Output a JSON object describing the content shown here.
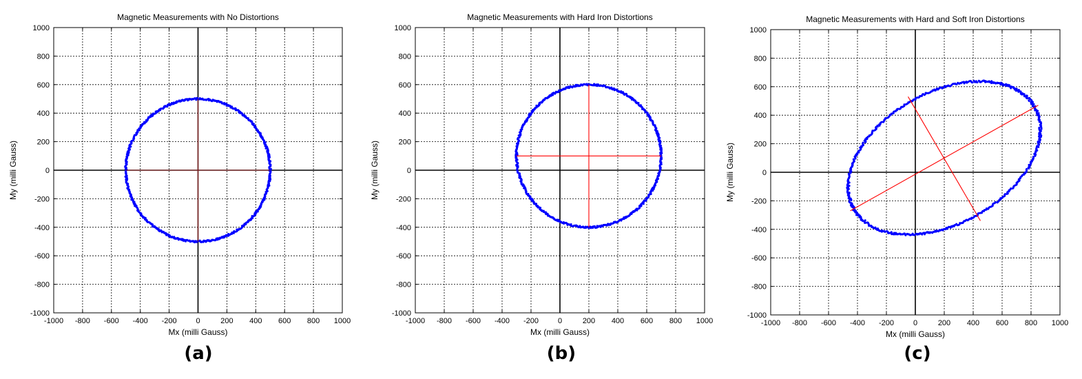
{
  "chart_data": [
    {
      "type": "scatter",
      "panel_label": "(a)",
      "title": "Magnetic Measurements with No Distortions",
      "xlabel": "Mx (milli Gauss)",
      "ylabel": "My (milli Gauss)",
      "xlim": [
        -1000,
        1000
      ],
      "ylim": [
        -1000,
        1000
      ],
      "xticks": [
        "-1000",
        "-800",
        "-600",
        "-400",
        "-200",
        "0",
        "200",
        "400",
        "600",
        "800",
        "1000"
      ],
      "yticks": [
        "-1000",
        "-800",
        "-600",
        "-400",
        "-200",
        "0",
        "200",
        "400",
        "600",
        "800",
        "1000"
      ],
      "grid": true,
      "point_color": "#0000ff",
      "axis_line_color": "#8b1a1a",
      "ellipse": {
        "center": [
          0,
          0
        ],
        "semi_axis_a": 500,
        "semi_axis_b": 500,
        "rotation_deg": 0
      },
      "axis_lines": [
        {
          "from": [
            -500,
            0
          ],
          "to": [
            500,
            0
          ]
        },
        {
          "from": [
            0,
            -500
          ],
          "to": [
            0,
            500
          ]
        }
      ]
    },
    {
      "type": "scatter",
      "panel_label": "(b)",
      "title": "Magnetic Measurements with Hard Iron Distortions",
      "xlabel": "Mx (milli Gauss)",
      "ylabel": "My (milli Gauss)",
      "xlim": [
        -1000,
        1000
      ],
      "ylim": [
        -1000,
        1000
      ],
      "xticks": [
        "-1000",
        "-800",
        "-600",
        "-400",
        "-200",
        "0",
        "200",
        "400",
        "600",
        "800",
        "1000"
      ],
      "yticks": [
        "-1000",
        "-800",
        "-600",
        "-400",
        "-200",
        "0",
        "200",
        "400",
        "600",
        "800",
        "1000"
      ],
      "grid": true,
      "point_color": "#0000ff",
      "axis_line_color": "#ff0000",
      "ellipse": {
        "center": [
          200,
          100
        ],
        "semi_axis_a": 500,
        "semi_axis_b": 500,
        "rotation_deg": 0
      },
      "axis_lines": [
        {
          "from": [
            -300,
            100
          ],
          "to": [
            700,
            100
          ]
        },
        {
          "from": [
            200,
            -400
          ],
          "to": [
            200,
            600
          ]
        }
      ]
    },
    {
      "type": "scatter",
      "panel_label": "(c)",
      "title": "Magnetic Measurements with Hard and Soft Iron Distortions",
      "xlabel": "Mx (milli Gauss)",
      "ylabel": "My (milli Gauss)",
      "xlim": [
        -1000,
        1000
      ],
      "ylim": [
        -1000,
        1000
      ],
      "xticks": [
        "-1000",
        "-800",
        "-600",
        "-400",
        "-200",
        "0",
        "200",
        "400",
        "600",
        "800",
        "1000"
      ],
      "yticks": [
        "-1000",
        "-800",
        "-600",
        "-400",
        "-200",
        "0",
        "200",
        "400",
        "600",
        "800",
        "1000"
      ],
      "grid": true,
      "point_color": "#0000ff",
      "axis_line_color": "#ff0000",
      "ellipse": {
        "center": [
          200,
          100
        ],
        "semi_axis_a": 720,
        "semi_axis_b": 460,
        "rotation_deg": 30
      },
      "axis_lines": [
        {
          "from": [
            -450,
            -270
          ],
          "to": [
            850,
            470
          ]
        },
        {
          "from": [
            -50,
            530
          ],
          "to": [
            450,
            -340
          ]
        }
      ]
    }
  ]
}
